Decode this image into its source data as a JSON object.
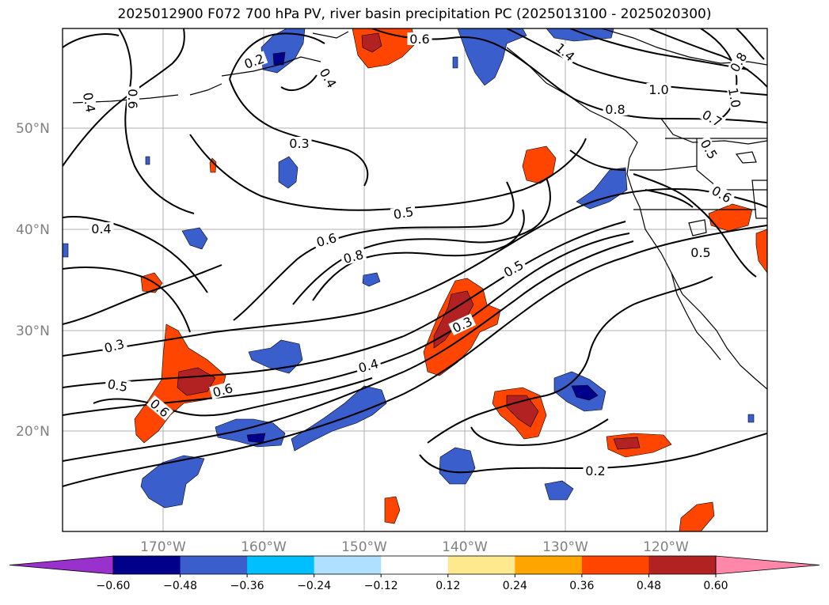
{
  "title": "2025012900 F072 700 hPa PV, river basin precipitation PC (2025013100 - 2025020300)",
  "lat_labels": [
    "50°N",
    "40°N",
    "30°N",
    "20°N"
  ],
  "lon_labels": [
    "170°W",
    "160°W",
    "150°W",
    "140°W",
    "130°W",
    "120°W"
  ],
  "colorbar": {
    "ticks": [
      "−0.60",
      "−0.48",
      "−0.36",
      "−0.24",
      "−0.12",
      "0.12",
      "0.24",
      "0.36",
      "0.48",
      "0.60"
    ],
    "colors": [
      "#9932cc",
      "#00008b",
      "#3a5fcd",
      "#00bfff",
      "#b0e0ff",
      "#ffffff",
      "#ffe98f",
      "#ffa500",
      "#ff4500",
      "#b22222",
      "#ff88aa"
    ]
  },
  "contour_labels": [
    "0.6",
    "0.2",
    "0.4",
    "1.4",
    "0.4",
    "0.6",
    "0.3",
    "1.0",
    "0.8",
    "0.7",
    "1.0",
    "0.5",
    "0.5",
    "0.6",
    "0.4",
    "0.6",
    "0.8",
    "0.5",
    "0.5",
    "0.3",
    "0.3",
    "0.4",
    "0.5",
    "0.6",
    "0.6",
    "0.2",
    "0.8"
  ]
}
